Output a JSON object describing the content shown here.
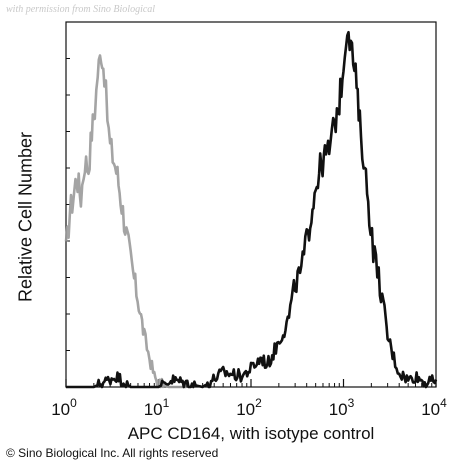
{
  "watermark": "with permission from Sino Biological",
  "copyright": "© Sino Biological Inc. All rights reserved",
  "chart_data": {
    "type": "area",
    "title": "",
    "xlabel": "APC CD164, with isotype control",
    "ylabel": "Relative Cell Number",
    "xscale": "log",
    "xlim": [
      1,
      10000
    ],
    "ylim": [
      0,
      100
    ],
    "xticks": [
      {
        "value": 1,
        "base": "10",
        "exp": "0"
      },
      {
        "value": 10,
        "base": "10",
        "exp": "1"
      },
      {
        "value": 100,
        "base": "10",
        "exp": "2"
      },
      {
        "value": 1000,
        "base": "10",
        "exp": "3"
      },
      {
        "value": 10000,
        "base": "10",
        "exp": "4"
      }
    ],
    "grid": false,
    "legend": "none",
    "series": [
      {
        "color": "#9a9a9a",
        "x": [
          1.0,
          1.1,
          1.2,
          1.3,
          1.45,
          1.6,
          1.75,
          1.9,
          2.05,
          2.2,
          2.4,
          2.6,
          2.8,
          3.0,
          3.3,
          3.6,
          4.0,
          4.5,
          5.0,
          5.6,
          6.3,
          7.0,
          8.0,
          9.0,
          10.0,
          11.5,
          13.0,
          15.0,
          20.0
        ],
        "y": [
          37,
          48,
          52,
          58,
          52,
          62,
          60,
          70,
          76,
          86,
          92,
          86,
          74,
          66,
          62,
          58,
          50,
          42,
          35,
          28,
          21,
          14,
          8,
          3,
          1,
          0.5,
          0,
          0,
          0
        ]
      },
      {
        "color": "#111111",
        "x": [
          1.0,
          2.0,
          3.5,
          5.0,
          10.0,
          14.0,
          30.0,
          50.0,
          80.0,
          100.0,
          130.0,
          150.0,
          180.0,
          210.0,
          250.0,
          300.0,
          350.0,
          400.0,
          450.0,
          500.0,
          560.0,
          630.0,
          700.0,
          800.0,
          900.0,
          1000.0,
          1100.0,
          1200.0,
          1350.0,
          1500.0,
          1700.0,
          1900.0,
          2100.0,
          2400.0,
          2700.0,
          3000.0,
          3500.0,
          4000.0,
          5000.0,
          6000.0,
          8000.0,
          10000.0
        ],
        "y": [
          0,
          0,
          3,
          0,
          0,
          2,
          0,
          4,
          3,
          5,
          8,
          6,
          10,
          14,
          18,
          28,
          32,
          40,
          48,
          55,
          60,
          63,
          65,
          72,
          78,
          88,
          100,
          94,
          85,
          72,
          60,
          48,
          38,
          30,
          22,
          14,
          8,
          4,
          2,
          3,
          1,
          2
        ]
      }
    ]
  }
}
